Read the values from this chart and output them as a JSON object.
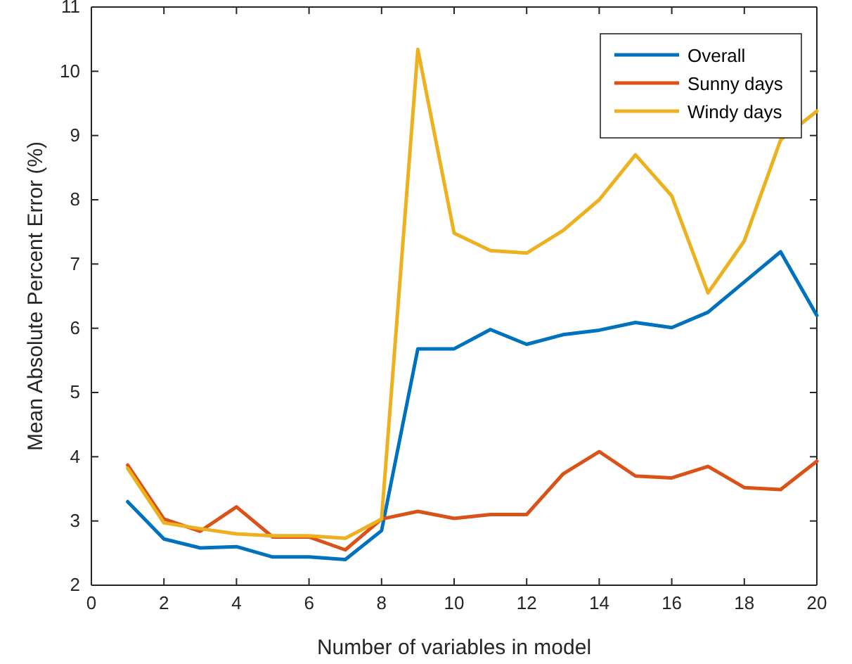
{
  "chart_data": {
    "type": "line",
    "xlabel": "Number of variables in model",
    "ylabel": "Mean Absolute Percent Error (%)",
    "x": [
      1,
      2,
      3,
      4,
      5,
      6,
      7,
      8,
      9,
      10,
      11,
      12,
      13,
      14,
      15,
      16,
      17,
      18,
      19,
      20
    ],
    "series": [
      {
        "name": "Overall",
        "color": "#0072bd",
        "values": [
          3.3,
          2.72,
          2.58,
          2.6,
          2.44,
          2.44,
          2.4,
          2.85,
          5.68,
          5.68,
          5.98,
          5.75,
          5.9,
          5.97,
          6.09,
          6.01,
          6.25,
          6.72,
          7.19,
          6.2
        ]
      },
      {
        "name": "Sunny days",
        "color": "#d95319",
        "values": [
          3.87,
          3.03,
          2.84,
          3.22,
          2.75,
          2.75,
          2.55,
          3.03,
          3.15,
          3.04,
          3.1,
          3.1,
          3.73,
          4.08,
          3.7,
          3.67,
          3.85,
          3.52,
          3.49,
          3.93
        ]
      },
      {
        "name": "Windy days",
        "color": "#edb120",
        "values": [
          3.82,
          2.97,
          2.88,
          2.8,
          2.77,
          2.77,
          2.73,
          3.03,
          10.34,
          7.48,
          7.21,
          7.17,
          7.52,
          8.0,
          8.7,
          8.06,
          6.55,
          7.36,
          8.93,
          9.38
        ]
      }
    ],
    "xlim": [
      0,
      20
    ],
    "xticks": [
      0,
      2,
      4,
      6,
      8,
      10,
      12,
      14,
      16,
      18,
      20
    ],
    "ylim": [
      2,
      11
    ],
    "yticks": [
      2,
      3,
      4,
      5,
      6,
      7,
      8,
      9,
      10,
      11
    ],
    "legend": "top right",
    "marker": "none",
    "line_style": "solid",
    "grid": false
  }
}
